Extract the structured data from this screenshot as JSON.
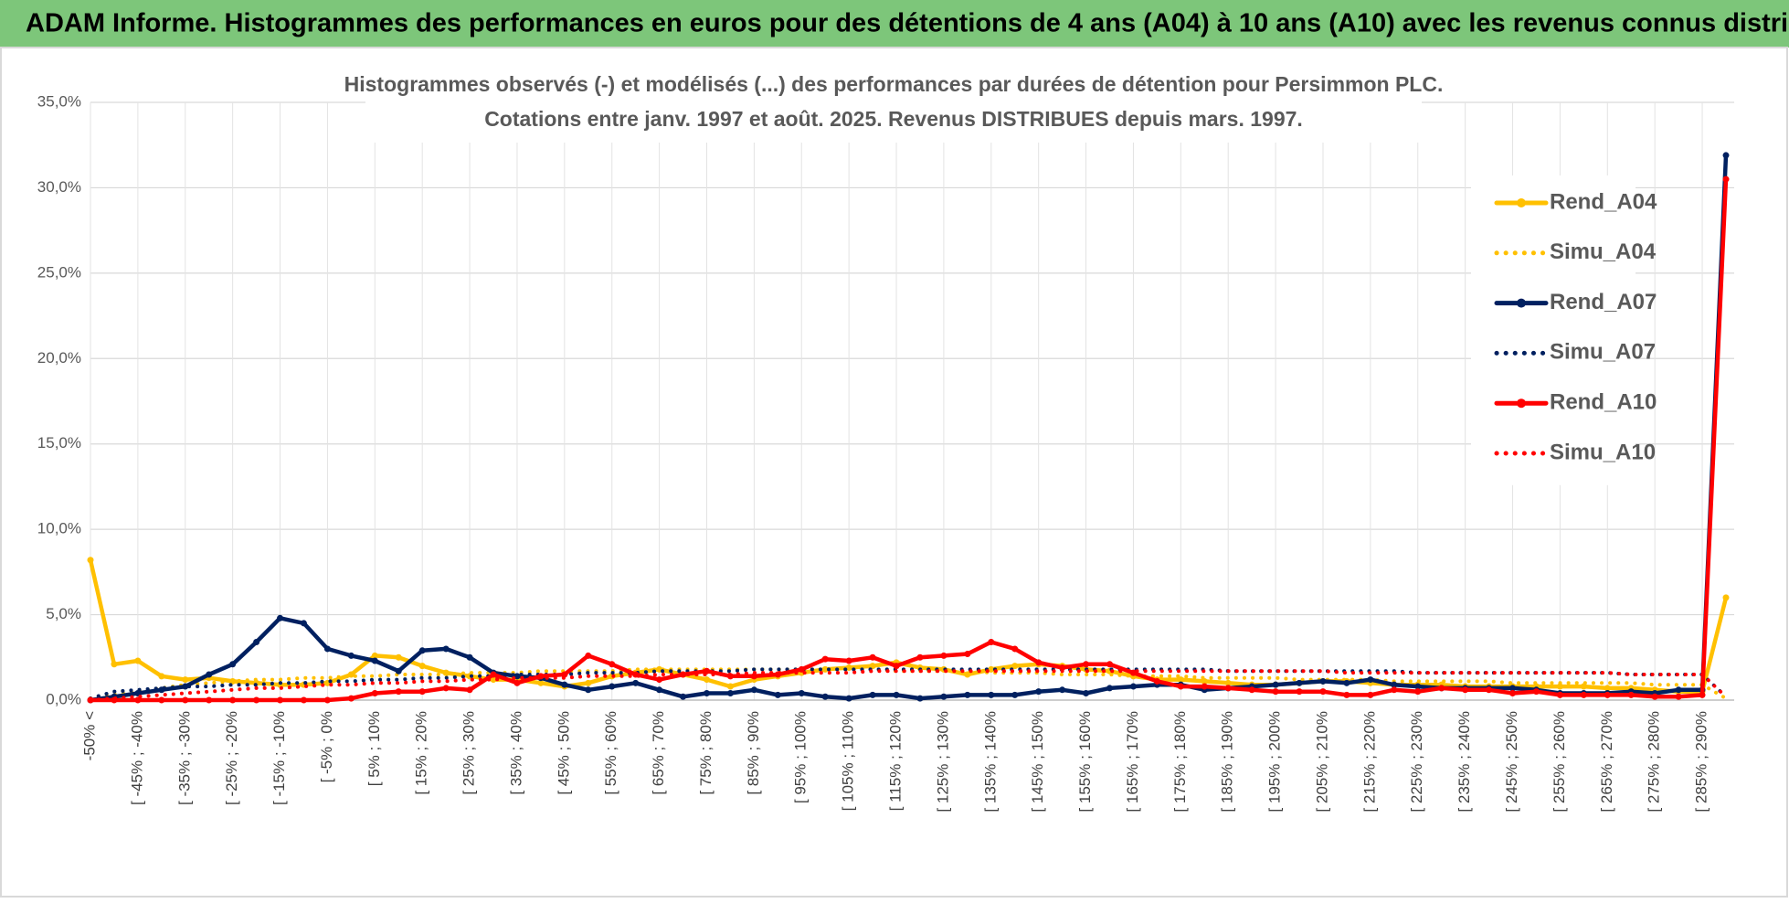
{
  "header": "ADAM Informe. Histogrammes des performances en euros pour des détentions de 4 ans (A04) à 10 ans (A10) avec les revenus connus distribués",
  "chart_data": {
    "type": "line",
    "title": [
      "Histogrammes observés (-) et modélisés (...) des performances par durées de détention pour Persimmon PLC.",
      "Cotations entre janv. 1997 et août. 2025. Revenus DISTRIBUES depuis mars. 1997."
    ],
    "categories": [
      "-50% <",
      null,
      "[ -45% ; -40%",
      null,
      "[ -35% ; -30%",
      null,
      "[ -25% ; -20%",
      null,
      "[ -15% ; -10%",
      null,
      "[ -5% ; 0%",
      null,
      "[ 5% ; 10%",
      null,
      "[ 15% ; 20%",
      null,
      "[ 25% ; 30%",
      null,
      "[ 35% ; 40%",
      null,
      "[ 45% ; 50%",
      null,
      "[ 55% ; 60%",
      null,
      "[ 65% ; 70%",
      null,
      "[ 75% ; 80%",
      null,
      "[ 85% ; 90%",
      null,
      "[ 95% ; 100%",
      null,
      "[ 105% ; 110%",
      null,
      "[ 115% ; 120%",
      null,
      "[ 125% ; 130%",
      null,
      "[ 135% ; 140%",
      null,
      "[ 145% ; 150%",
      null,
      "[ 155% ; 160%",
      null,
      "[ 165% ; 170%",
      null,
      "[ 175% ; 180%",
      null,
      "[ 185% ; 190%",
      null,
      "[ 195% ; 200%",
      null,
      "[ 205% ; 210%",
      null,
      "[ 215% ; 220%",
      null,
      "[ 225% ; 230%",
      null,
      "[ 235% ; 240%",
      null,
      "[ 245% ; 250%",
      null,
      "[ 255% ; 260%",
      null,
      "[ 265% ; 270%",
      null,
      "[ 275% ; 280%",
      null,
      "[ 285% ; 290%",
      null
    ],
    "series": [
      {
        "name": "Rend_A04",
        "color": "#ffc000",
        "line_style": "solid",
        "values": [
          8.2,
          2.1,
          2.3,
          1.4,
          1.2,
          1.3,
          1.1,
          1.0,
          0.9,
          0.9,
          1.0,
          1.5,
          2.6,
          2.5,
          2.0,
          1.6,
          1.4,
          1.2,
          1.2,
          1.0,
          0.8,
          1.0,
          1.4,
          1.6,
          1.8,
          1.5,
          1.2,
          0.8,
          1.2,
          1.4,
          1.6,
          1.8,
          1.9,
          2.0,
          2.2,
          1.9,
          1.8,
          1.5,
          1.8,
          2.0,
          2.1,
          2.0,
          1.8,
          1.7,
          1.4,
          1.2,
          1.2,
          1.1,
          1.0,
          0.9,
          0.9,
          1.0,
          1.1,
          1.1,
          1.0,
          0.9,
          0.9,
          0.9,
          0.8,
          0.8,
          0.8,
          0.8,
          0.8,
          0.8,
          0.7,
          0.7,
          0.6,
          0.5,
          0.5,
          6.0
        ]
      },
      {
        "name": "Simu_A04",
        "color": "#ffc000",
        "line_style": "dotted",
        "values": [
          0.1,
          0.3,
          0.5,
          0.7,
          0.9,
          1.0,
          1.1,
          1.2,
          1.2,
          1.3,
          1.3,
          1.4,
          1.4,
          1.5,
          1.5,
          1.5,
          1.6,
          1.6,
          1.6,
          1.7,
          1.7,
          1.7,
          1.7,
          1.8,
          1.8,
          1.8,
          1.8,
          1.8,
          1.8,
          1.8,
          1.8,
          1.8,
          1.8,
          1.8,
          1.7,
          1.7,
          1.7,
          1.7,
          1.6,
          1.6,
          1.6,
          1.5,
          1.5,
          1.5,
          1.4,
          1.4,
          1.4,
          1.3,
          1.3,
          1.3,
          1.3,
          1.2,
          1.2,
          1.2,
          1.2,
          1.1,
          1.1,
          1.1,
          1.1,
          1.1,
          1.0,
          1.0,
          1.0,
          1.0,
          1.0,
          1.0,
          0.9,
          0.9,
          0.9,
          0.1
        ]
      },
      {
        "name": "Rend_A07",
        "color": "#002060",
        "line_style": "solid",
        "values": [
          0.0,
          0.2,
          0.4,
          0.6,
          0.8,
          1.5,
          2.1,
          3.4,
          4.8,
          4.5,
          3.0,
          2.6,
          2.3,
          1.7,
          2.9,
          3.0,
          2.5,
          1.6,
          1.4,
          1.3,
          0.9,
          0.6,
          0.8,
          1.0,
          0.6,
          0.2,
          0.4,
          0.4,
          0.6,
          0.3,
          0.4,
          0.2,
          0.1,
          0.3,
          0.3,
          0.1,
          0.2,
          0.3,
          0.3,
          0.3,
          0.5,
          0.6,
          0.4,
          0.7,
          0.8,
          0.9,
          0.9,
          0.6,
          0.7,
          0.8,
          0.9,
          1.0,
          1.1,
          1.0,
          1.2,
          0.9,
          0.8,
          0.7,
          0.7,
          0.7,
          0.7,
          0.6,
          0.4,
          0.4,
          0.4,
          0.5,
          0.4,
          0.6,
          0.6,
          31.9
        ]
      },
      {
        "name": "Simu_A07",
        "color": "#002060",
        "line_style": "dotted",
        "values": [
          0.1,
          0.5,
          0.6,
          0.7,
          0.8,
          0.8,
          0.9,
          0.9,
          1.0,
          1.0,
          1.1,
          1.1,
          1.2,
          1.2,
          1.3,
          1.3,
          1.4,
          1.4,
          1.5,
          1.5,
          1.5,
          1.6,
          1.6,
          1.6,
          1.7,
          1.7,
          1.7,
          1.7,
          1.8,
          1.8,
          1.8,
          1.8,
          1.8,
          1.8,
          1.8,
          1.8,
          1.8,
          1.8,
          1.8,
          1.8,
          1.8,
          1.8,
          1.8,
          1.8,
          1.8,
          1.8,
          1.8,
          1.8,
          1.7,
          1.7,
          1.7,
          1.7,
          1.7,
          1.7,
          1.7,
          1.7,
          1.6,
          1.6,
          1.6,
          1.6,
          1.6,
          1.6,
          1.6,
          1.6,
          1.6,
          1.5,
          1.5,
          1.5,
          1.5,
          0.2
        ]
      },
      {
        "name": "Rend_A10",
        "color": "#ff0000",
        "line_style": "solid",
        "values": [
          0,
          0,
          0,
          0,
          0,
          0,
          0,
          0,
          0,
          0,
          0,
          0.1,
          0.4,
          0.5,
          0.5,
          0.7,
          0.6,
          1.5,
          1.0,
          1.4,
          1.5,
          2.6,
          2.1,
          1.5,
          1.2,
          1.5,
          1.7,
          1.4,
          1.4,
          1.5,
          1.8,
          2.4,
          2.3,
          2.5,
          2.0,
          2.5,
          2.6,
          2.7,
          3.4,
          3.0,
          2.2,
          1.9,
          2.1,
          2.1,
          1.6,
          1.1,
          0.8,
          0.8,
          0.7,
          0.6,
          0.5,
          0.5,
          0.5,
          0.3,
          0.3,
          0.6,
          0.5,
          0.7,
          0.6,
          0.6,
          0.4,
          0.5,
          0.3,
          0.3,
          0.3,
          0.3,
          0.2,
          0.2,
          0.3,
          30.5
        ]
      },
      {
        "name": "Simu_A10",
        "color": "#ff0000",
        "line_style": "dotted",
        "values": [
          0.0,
          0.1,
          0.2,
          0.3,
          0.4,
          0.5,
          0.6,
          0.7,
          0.7,
          0.8,
          0.9,
          0.9,
          1.0,
          1.0,
          1.1,
          1.1,
          1.2,
          1.2,
          1.3,
          1.3,
          1.3,
          1.4,
          1.4,
          1.4,
          1.5,
          1.5,
          1.5,
          1.5,
          1.6,
          1.6,
          1.6,
          1.6,
          1.6,
          1.7,
          1.7,
          1.7,
          1.7,
          1.7,
          1.7,
          1.7,
          1.7,
          1.7,
          1.7,
          1.7,
          1.7,
          1.7,
          1.7,
          1.7,
          1.7,
          1.7,
          1.7,
          1.7,
          1.7,
          1.6,
          1.6,
          1.6,
          1.6,
          1.6,
          1.6,
          1.6,
          1.6,
          1.6,
          1.6,
          1.6,
          1.6,
          1.5,
          1.5,
          1.5,
          1.5,
          0.2
        ]
      }
    ],
    "ylim": [
      0,
      35
    ],
    "yticks": [
      {
        "value": 0,
        "label": "0,0%"
      },
      {
        "value": 5,
        "label": "5,0%"
      },
      {
        "value": 10,
        "label": "10,0%"
      },
      {
        "value": 15,
        "label": "15,0%"
      },
      {
        "value": 20,
        "label": "20,0%"
      },
      {
        "value": 25,
        "label": "25,0%"
      },
      {
        "value": 30,
        "label": "30,0%"
      },
      {
        "value": 35,
        "label": "35,0%"
      }
    ],
    "grid": true,
    "legend": "right"
  }
}
